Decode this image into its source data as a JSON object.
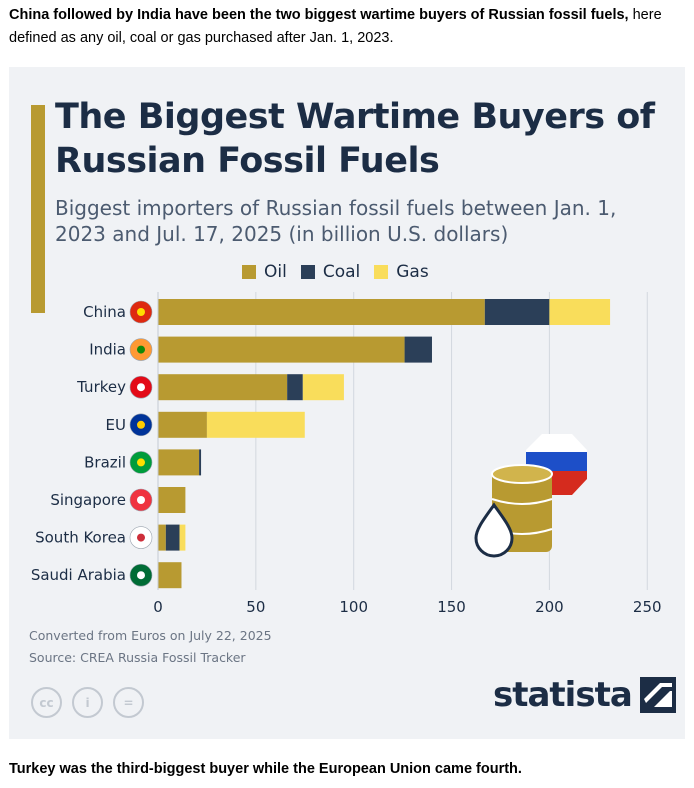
{
  "intro": {
    "bold": "China followed by India have been the two biggest wartime buyers of Russian fossil fuels,",
    "rest": " here defined as any oil, coal or gas purchased after Jan. 1, 2023."
  },
  "outro": "Turkey was the third-biggest buyer while the European Union came fourth.",
  "colors": {
    "oil": "#b89a31",
    "coal": "#2b3f58",
    "gas": "#f9dd5b",
    "accent": "#b89a31",
    "navy": "#1c2d45",
    "card_bg": "#f0f2f5"
  },
  "chart_data": {
    "type": "bar",
    "orientation": "horizontal",
    "stacked": true,
    "title": "The Biggest Wartime Buyers of Russian Fossil Fuels",
    "subtitle": "Biggest importers of Russian fossil fuels between Jan. 1, 2023 and Jul. 17, 2025 (in billion U.S. dollars)",
    "categories": [
      "China",
      "India",
      "Turkey",
      "EU",
      "Brazil",
      "Singapore",
      "South Korea",
      "Saudi Arabia"
    ],
    "series": [
      {
        "name": "Oil",
        "color": "#b89a31",
        "values": [
          167,
          126,
          66,
          25,
          21,
          14,
          4,
          12
        ]
      },
      {
        "name": "Coal",
        "color": "#2b3f58",
        "values": [
          33,
          14,
          8,
          0,
          1,
          0,
          7,
          0
        ]
      },
      {
        "name": "Gas",
        "color": "#f9dd5b",
        "values": [
          31,
          0,
          21,
          50,
          0,
          0,
          3,
          0
        ]
      }
    ],
    "xlim": [
      0,
      250
    ],
    "xticks": [
      0,
      50,
      100,
      150,
      200,
      250
    ],
    "grid": true,
    "legend_position": "top"
  },
  "notes": [
    "Converted from Euros on July 22, 2025",
    "Source: CREA Russia Fossil Tracker"
  ],
  "license_icons": [
    "creative-commons-icon",
    "attribution-icon",
    "no-derivatives-icon"
  ],
  "license_glyphs": [
    "cc",
    "i",
    "="
  ],
  "brand": "statista",
  "illustration": "oil-barrel-russian-flag-icon"
}
